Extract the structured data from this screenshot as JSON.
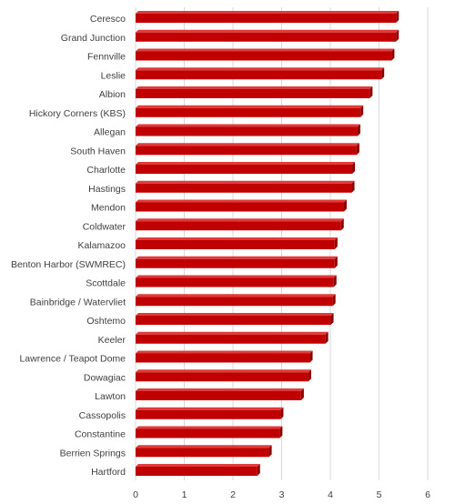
{
  "chart_data": {
    "type": "bar",
    "orientation": "horizontal",
    "categories": [
      "Ceresco",
      "Grand Junction",
      "Fennville",
      "Leslie",
      "Albion",
      "Hickory Corners (KBS)",
      "Allegan",
      "South Haven",
      "Charlotte",
      "Hastings",
      "Mendon",
      "Coldwater",
      "Kalamazoo",
      "Benton Harbor (SWMREC)",
      "Scottdale",
      "Bainbridge / Watervliet",
      "Oshtemo",
      "Keeler",
      "Lawrence / Teapot Dome",
      "Dowagiac",
      "Lawton",
      "Cassopolis",
      "Constantine",
      "Berrien Springs",
      "Hartford"
    ],
    "values": [
      5.35,
      5.35,
      5.26,
      5.05,
      4.81,
      4.62,
      4.56,
      4.54,
      4.45,
      4.44,
      4.28,
      4.22,
      4.09,
      4.09,
      4.07,
      4.05,
      4.01,
      3.9,
      3.58,
      3.55,
      3.4,
      2.98,
      2.96,
      2.74,
      2.5
    ],
    "xlim": [
      0,
      6
    ],
    "xticks": [
      "0",
      "1",
      "2",
      "3",
      "4",
      "5",
      "6"
    ],
    "grid": true,
    "bar_color": "#c00000",
    "bar_highlight": "#e03a3a",
    "bar_shadow": "#8b0000",
    "title": "",
    "xlabel": "",
    "ylabel": ""
  }
}
